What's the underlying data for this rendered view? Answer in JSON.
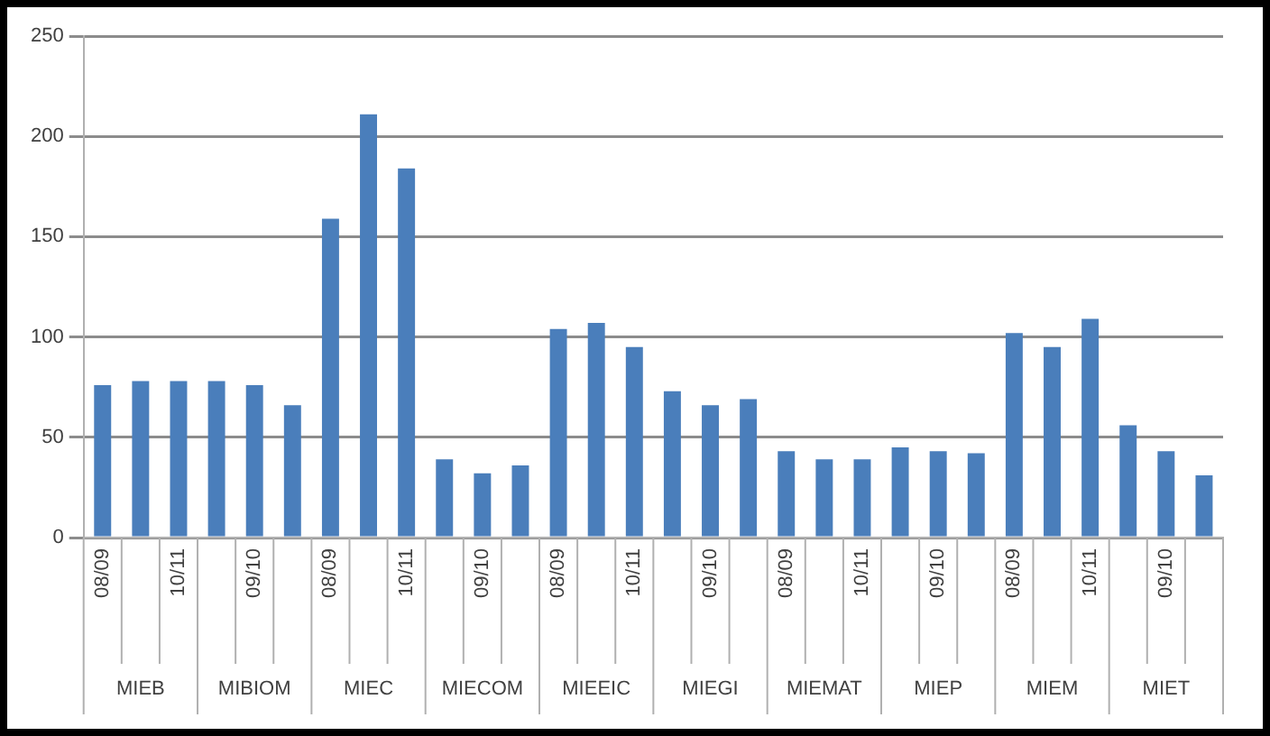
{
  "chart_data": {
    "type": "bar",
    "categories": [
      "08/09",
      null,
      "10/11",
      null,
      "09/10",
      null,
      "08/09",
      null,
      "10/11",
      null,
      "09/10",
      null,
      "08/09",
      null,
      "10/11",
      null,
      "09/10",
      null,
      "08/09",
      null,
      "10/11",
      null,
      "09/10",
      null,
      "08/09",
      null,
      "10/11",
      null,
      "09/10",
      null
    ],
    "values": [
      76,
      78,
      78,
      78,
      76,
      66,
      159,
      211,
      184,
      39,
      32,
      36,
      104,
      107,
      95,
      73,
      66,
      69,
      43,
      39,
      39,
      45,
      43,
      42,
      102,
      95,
      109,
      56,
      43,
      31
    ],
    "color": "#4a7ebb",
    "ylim": [
      0,
      250
    ],
    "yticks": [
      0,
      50,
      100,
      150,
      200,
      250
    ],
    "grid": "y",
    "legend": false,
    "annotations": [
      "MIEB",
      "MIBIOM",
      "MIEC",
      "MIECOM",
      "MIEEIC",
      "MIEGI",
      "MIEMAT",
      "MIEP",
      "MIEM",
      "MIET"
    ]
  }
}
